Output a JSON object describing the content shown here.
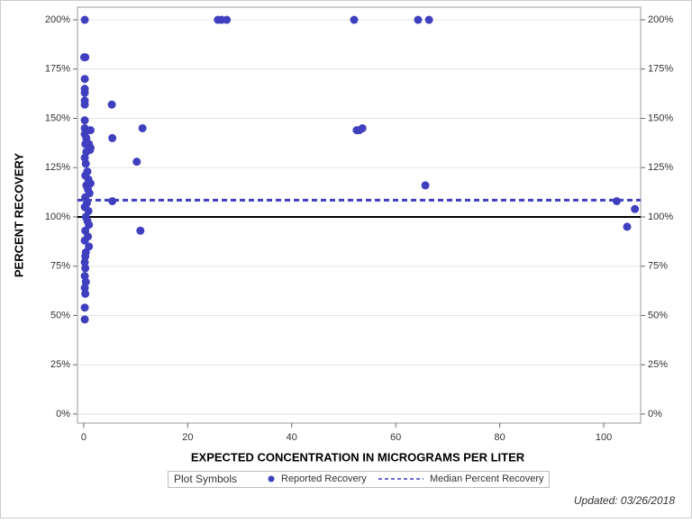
{
  "chart_data": {
    "type": "scatter",
    "x_label": "EXPECTED CONCENTRATION IN MICROGRAMS PER LITER",
    "y_label": "PERCENT RECOVERY",
    "xlim": [
      -1.2,
      107.1
    ],
    "ylim": [
      -4.6,
      206.4
    ],
    "xticks": [
      0,
      20,
      40,
      60,
      80,
      100
    ],
    "yticks": [
      {
        "value": 0,
        "label": "0%"
      },
      {
        "value": 25,
        "label": "25%"
      },
      {
        "value": 50,
        "label": "50%"
      },
      {
        "value": 75,
        "label": "75%"
      },
      {
        "value": 100,
        "label": "100%"
      },
      {
        "value": 125,
        "label": "125%"
      },
      {
        "value": 150,
        "label": "150%"
      },
      {
        "value": 175,
        "label": "175%"
      },
      {
        "value": 200,
        "label": "200%"
      }
    ],
    "grid": true,
    "legend_title": "Plot Symbols",
    "series": [
      {
        "name": "Reported Recovery",
        "color": "#3f3fbf",
        "x": [
          0.2,
          0.1,
          0.3,
          0.2,
          0.2,
          0.2,
          0.2,
          0.2,
          0.2,
          0.2,
          0.2,
          0.5,
          0.3,
          1.0,
          1.3,
          1.2,
          0.5,
          0.2,
          0.4,
          0.7,
          0.3,
          0.9,
          1.3,
          0.5,
          0.8,
          1.1,
          0.3,
          0.6,
          0.2,
          0.9,
          0.4,
          0.7,
          1.0,
          0.3,
          0.8,
          0.2,
          1.0,
          0.4,
          0.3,
          0.2,
          0.3,
          0.2,
          0.4,
          0.2,
          0.3,
          0.2,
          0.2,
          1.3,
          5.4,
          5.5,
          11.3,
          10.2,
          5.5,
          10.9,
          25.8,
          26.5,
          27.5,
          52.0,
          64.3,
          66.4,
          52.5,
          53.0,
          53.6,
          65.7,
          102.5,
          104.5,
          106.0
        ],
        "y": [
          200,
          181,
          181,
          170,
          165,
          163,
          159,
          157,
          149,
          145,
          142,
          140,
          137,
          137,
          135,
          134,
          133,
          130,
          127,
          123,
          121,
          119,
          117,
          116,
          114,
          112,
          110,
          107,
          105,
          103,
          100,
          98,
          96,
          93,
          90,
          88,
          85,
          82,
          80,
          77,
          74,
          70,
          67,
          64,
          61,
          54,
          48,
          144,
          157,
          140,
          145,
          128,
          108,
          93,
          200,
          200,
          200,
          200,
          200,
          200,
          144,
          144,
          145,
          116,
          108,
          95,
          104
        ]
      }
    ],
    "median_line": {
      "name": "Median Percent Recovery",
      "value": 108.5,
      "color": "#3f3fbf"
    },
    "reference_line": 100,
    "footer": "Updated: 03/26/2018"
  }
}
